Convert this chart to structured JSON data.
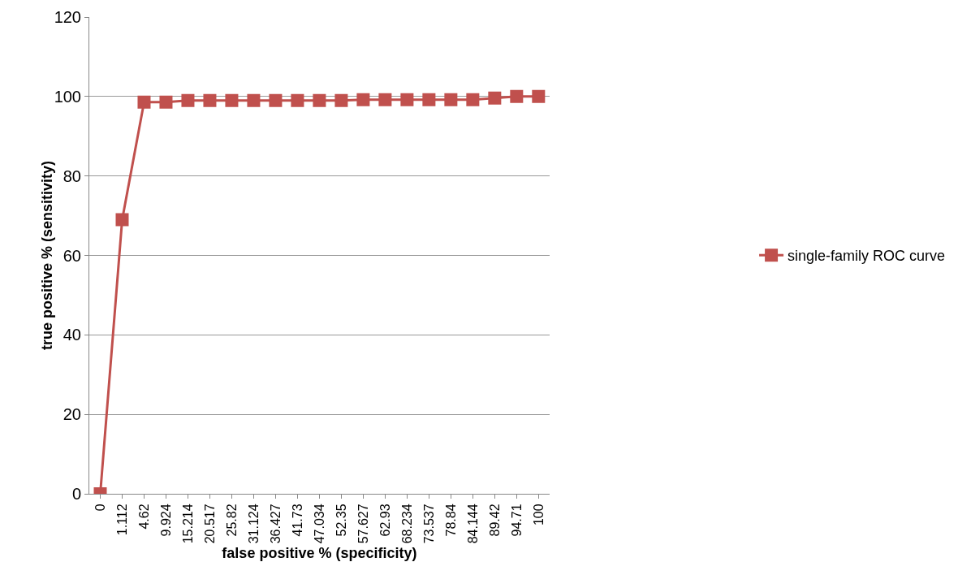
{
  "chart_data": {
    "type": "line",
    "xlabel": "false positive % (specificity)",
    "ylabel": "true positive % (sensitivity)",
    "categories": [
      "0",
      "1.112",
      "4.62",
      "9.924",
      "15.214",
      "20.517",
      "25.82",
      "31.124",
      "36.427",
      "41.73",
      "47.034",
      "52.35",
      "57.627",
      "62.93",
      "68.234",
      "73.537",
      "78.84",
      "84.144",
      "89.42",
      "94.71",
      "100"
    ],
    "series": [
      {
        "name": "single-family ROC curve",
        "color": "#c0504d",
        "values": [
          0,
          69,
          98.6,
          98.6,
          99,
          99,
          99,
          99,
          99,
          99,
          99,
          99,
          99.2,
          99.2,
          99.2,
          99.2,
          99.2,
          99.2,
          99.6,
          100,
          100
        ]
      }
    ],
    "ylim": [
      0,
      120
    ],
    "yticks": [
      0,
      20,
      40,
      60,
      80,
      100,
      120
    ],
    "grid": "y",
    "legend": "right",
    "marker": "square",
    "line_style": "solid"
  }
}
